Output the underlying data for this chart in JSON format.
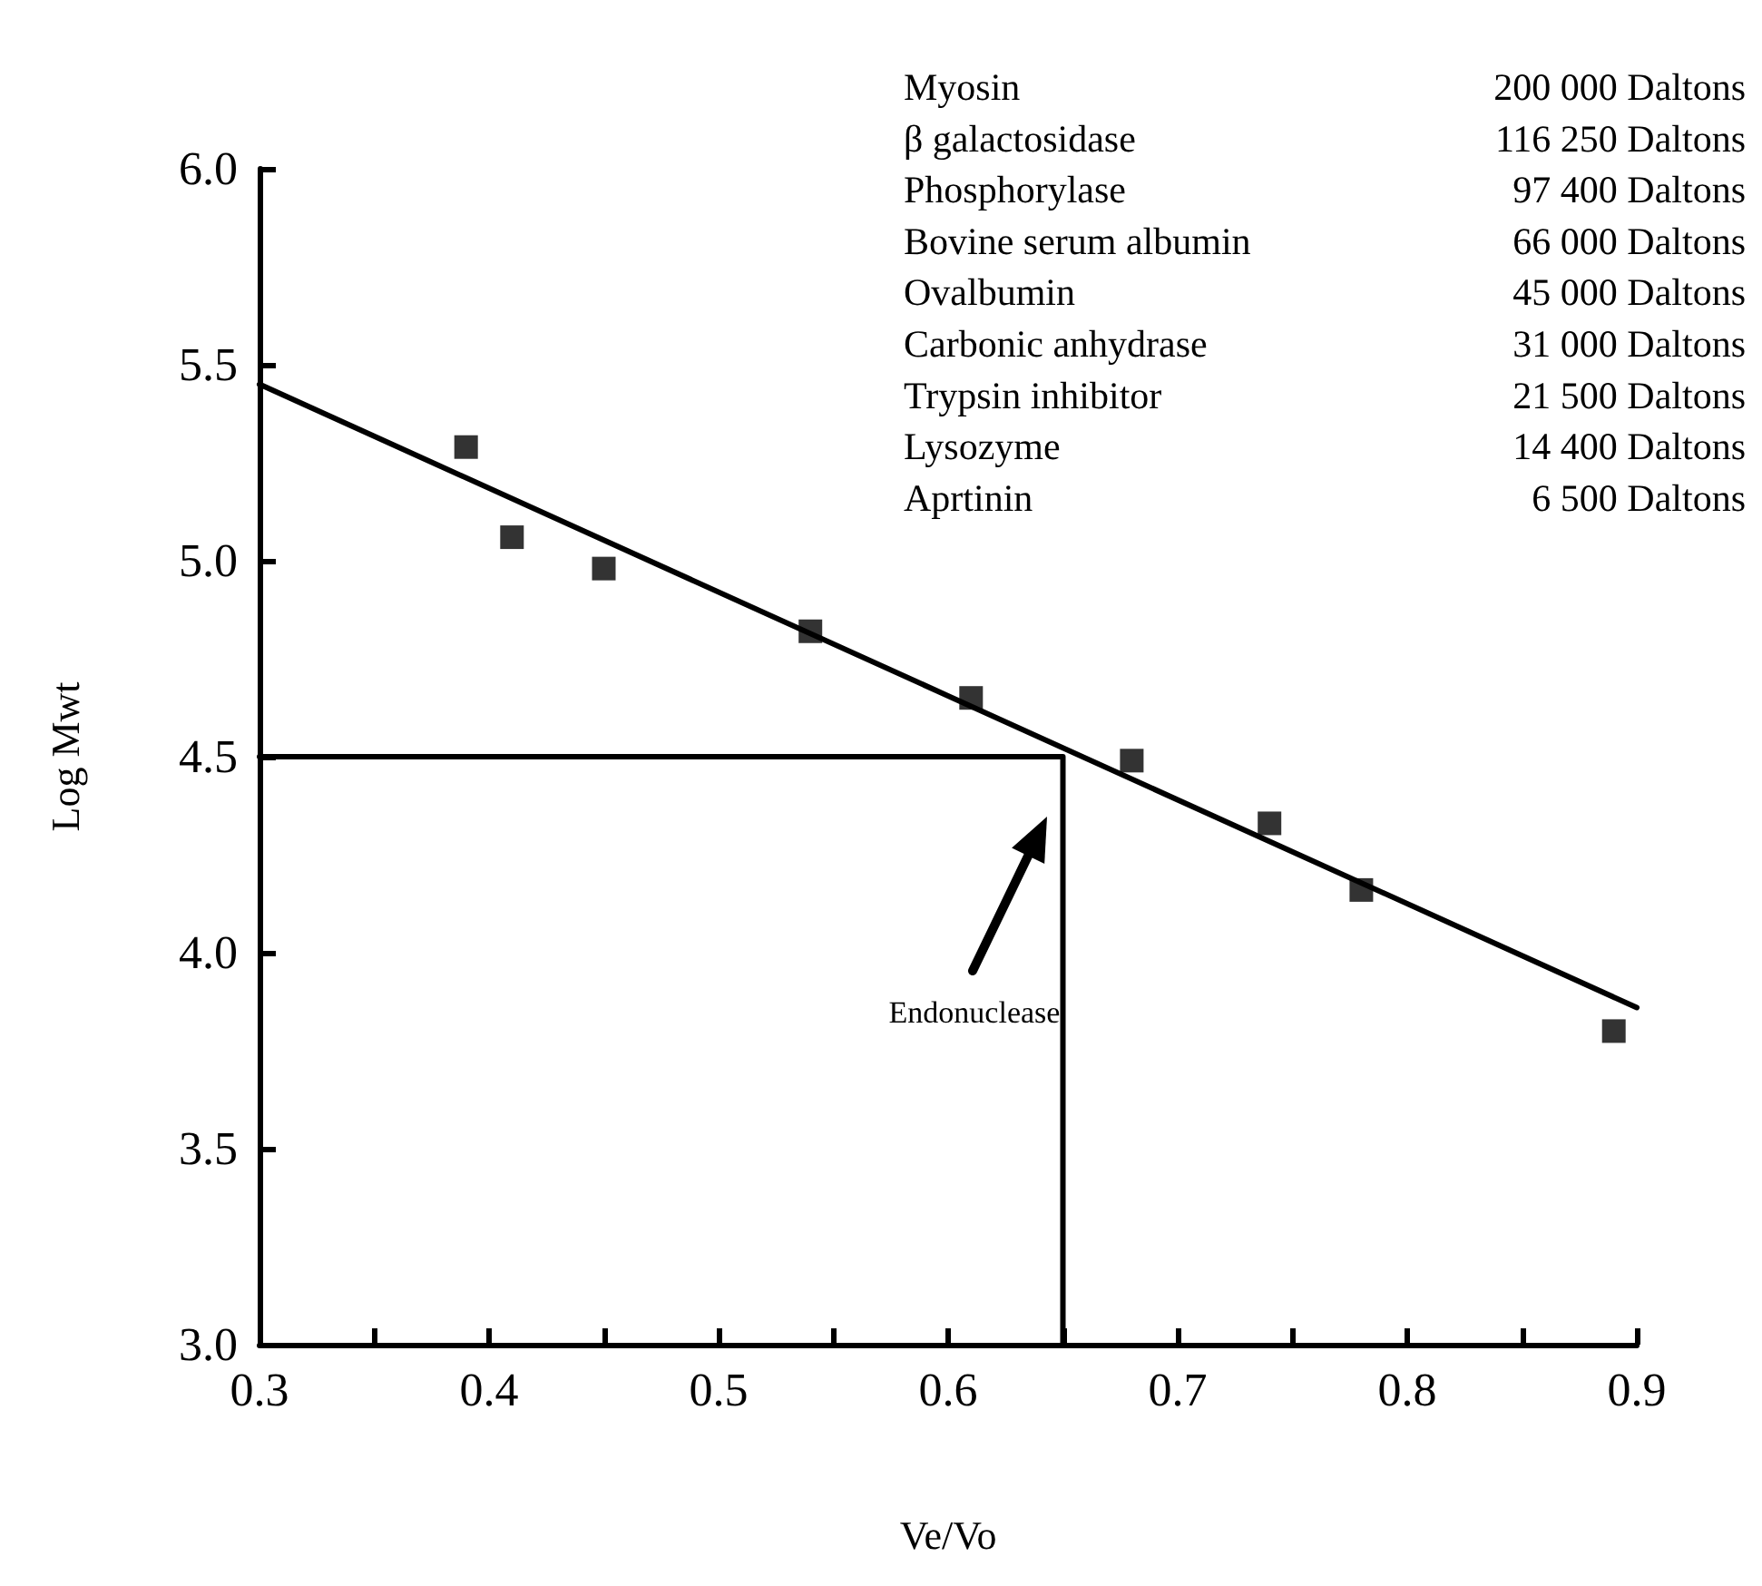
{
  "chart_data": {
    "type": "scatter",
    "xlabel": "Ve/Vo",
    "ylabel": "Log Mwt",
    "xlim": [
      0.3,
      0.9
    ],
    "xticks": [
      0.3,
      {
        "value": 0.35,
        "label": null
      },
      0.4,
      {
        "value": 0.45,
        "label": null
      },
      0.5,
      {
        "value": 0.55,
        "label": null
      },
      0.6,
      {
        "value": 0.65,
        "label": null
      },
      0.7,
      {
        "value": 0.75,
        "label": null
      },
      0.8,
      {
        "value": 0.85,
        "label": null
      },
      0.9
    ],
    "ylim": [
      3.0,
      6.0
    ],
    "yticks": [
      {
        "value": 3,
        "label": "3.0"
      },
      3.5,
      {
        "value": 4,
        "label": "4.0"
      },
      4.5,
      {
        "value": 5,
        "label": "5.0"
      },
      5.5,
      {
        "value": 6,
        "label": "6.0"
      }
    ],
    "grid": false,
    "marker": "square",
    "series": [
      {
        "color": "#000000",
        "x": [
          0.39,
          0.41,
          0.45,
          0.54,
          0.61,
          0.68,
          0.74,
          0.78,
          0.89
        ],
        "values": [
          5.29,
          5.06,
          4.98,
          4.82,
          4.65,
          4.49,
          4.33,
          4.16,
          3.8
        ]
      },
      {
        "type": "line",
        "color": "#000000",
        "marker": "none",
        "x": [
          0.3,
          0.9
        ],
        "values": [
          5.45,
          3.86
        ]
      },
      {
        "type": "line",
        "color": "#000000",
        "marker": "none",
        "x": [
          0.3,
          0.65,
          0.65
        ],
        "values": [
          4.5,
          4.5,
          3.0
        ]
      }
    ],
    "annotations": [
      "Endonuclease",
      "Myosin",
      "200 000 Daltons",
      "β galactosidase",
      "116 250 Daltons",
      "Phosphorylase",
      "97 400 Daltons",
      "Bovine serum albumin",
      "66 000 Daltons",
      "Ovalbumin",
      "45 000 Daltons",
      "Carbonic anhydrase",
      "31 000 Daltons",
      "Trypsin inhibitor",
      "21 500 Daltons",
      "Lysozyme",
      "14 400 Daltons",
      "Aprtinin",
      "6 500 Daltons"
    ]
  }
}
